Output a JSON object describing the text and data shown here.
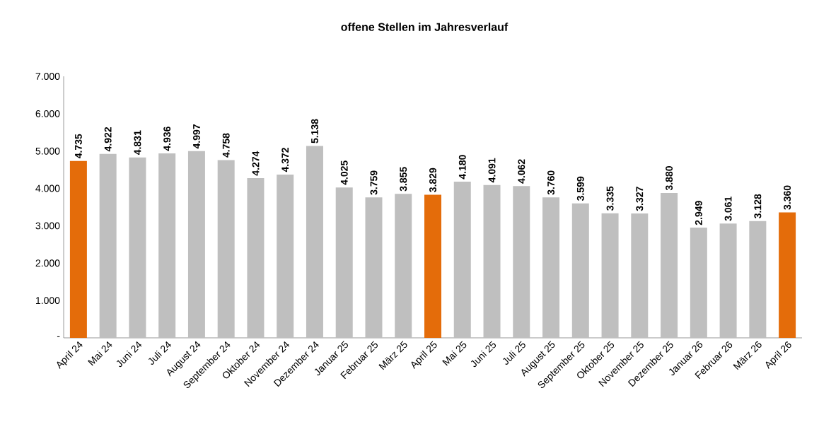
{
  "chart_data": {
    "type": "bar",
    "title": "offene Stellen im Jahresverlauf",
    "categories": [
      "April 24",
      "Mai 24",
      "Juni 24",
      "Juli 24",
      "August 24",
      "September 24",
      "Oktober 24",
      "November 24",
      "Dezember 24",
      "Januar 25",
      "Februar 25",
      "März 25",
      "April 25",
      "Mai 25",
      "Juni 25",
      "Juli 25",
      "August 25",
      "September 25",
      "Oktober 25",
      "November 25",
      "Dezember 25",
      "Januar 26",
      "Februar 26",
      "März 26",
      "April 26"
    ],
    "values": [
      4735,
      4922,
      4831,
      4936,
      4997,
      4758,
      4274,
      4372,
      5138,
      4025,
      3759,
      3855,
      3829,
      4180,
      4091,
      4062,
      3760,
      3599,
      3335,
      3327,
      3880,
      2949,
      3061,
      3128,
      3360
    ],
    "value_labels": [
      "4.735",
      "4.922",
      "4.831",
      "4.936",
      "4.997",
      "4.758",
      "4.274",
      "4.372",
      "5.138",
      "4.025",
      "3.759",
      "3.855",
      "3.829",
      "4.180",
      "4.091",
      "4.062",
      "3.760",
      "3.599",
      "3.335",
      "3.327",
      "3.880",
      "2.949",
      "3.061",
      "3.128",
      "3.360"
    ],
    "colors": [
      "#e46c0a",
      "#bfbfbf",
      "#bfbfbf",
      "#bfbfbf",
      "#bfbfbf",
      "#bfbfbf",
      "#bfbfbf",
      "#bfbfbf",
      "#bfbfbf",
      "#bfbfbf",
      "#bfbfbf",
      "#bfbfbf",
      "#e46c0a",
      "#bfbfbf",
      "#bfbfbf",
      "#bfbfbf",
      "#bfbfbf",
      "#bfbfbf",
      "#bfbfbf",
      "#bfbfbf",
      "#bfbfbf",
      "#bfbfbf",
      "#bfbfbf",
      "#bfbfbf",
      "#e46c0a"
    ],
    "ylim": [
      0,
      7000
    ],
    "yticks": [
      {
        "value": 0,
        "label": "-"
      },
      {
        "value": 1000,
        "label": "1.000"
      },
      {
        "value": 2000,
        "label": "2.000"
      },
      {
        "value": 3000,
        "label": "3.000"
      },
      {
        "value": 4000,
        "label": "4.000"
      },
      {
        "value": 5000,
        "label": "5.000"
      },
      {
        "value": 6000,
        "label": "6.000"
      },
      {
        "value": 7000,
        "label": "7.000"
      }
    ],
    "grid": false
  }
}
